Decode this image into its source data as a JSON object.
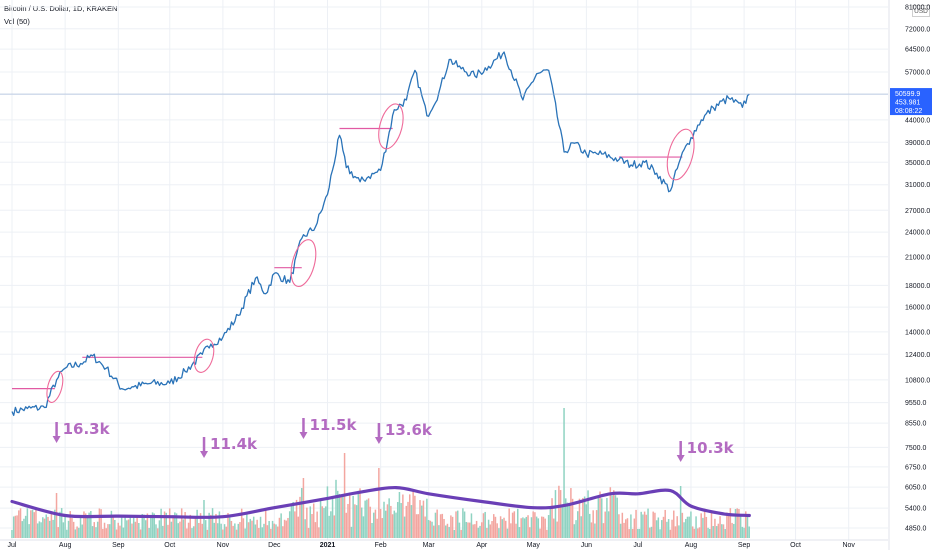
{
  "header": {
    "symbol_line": "Bitcoin / U.S. Dollar, 1D, KRAKEN",
    "volume_line": "Vol (50)",
    "currency": "USD"
  },
  "colors": {
    "price_line": "#2a73b8",
    "level_line": "#e15aa3",
    "circle": "#ef6b9a",
    "volume_up": "#8fd3c2",
    "volume_down": "#f3a6a0",
    "volume_ma": "#6a3fb6",
    "annotation": "#b36bc1",
    "last_price_bg": "#2962ff",
    "grid": "#edf0f5"
  },
  "last_price": {
    "price": "50599.9",
    "volume": "453.981",
    "countdown": "08:08:22"
  },
  "chart_data": [
    {
      "type": "line",
      "y_scale": "log",
      "y_ticks": [
        4850,
        5400,
        6050,
        6750,
        7500,
        8550,
        9550,
        10800,
        12400,
        14000,
        16000,
        18000,
        21000,
        24000,
        27000,
        31000,
        35000,
        39000,
        44000,
        50500,
        57000,
        64500,
        72000,
        81000
      ],
      "y_tick_labels": [
        "4850.0",
        "5400.0",
        "6050.0",
        "6750.0",
        "7500.0",
        "8550.0",
        "9550.0",
        "10800.0",
        "12400.0",
        "14000.0",
        "16000.0",
        "18000.0",
        "21000.0",
        "24000.0",
        "27000.0",
        "31000.0",
        "35000.0",
        "39000.0",
        "44000.0",
        "50500.0",
        "57000.0",
        "64500.0",
        "72000.0",
        "81000.0"
      ],
      "x_tick_labels": [
        "Jul",
        "Aug",
        "Sep",
        "Oct",
        "Nov",
        "Dec",
        "2021",
        "Feb",
        "Mar",
        "Apr",
        "May",
        "Jun",
        "Jul",
        "Aug",
        "Sep",
        "Oct",
        "Nov"
      ],
      "series": [
        {
          "x": [
            "2020-07-01",
            "2020-07-10",
            "2020-07-20",
            "2020-07-27",
            "2020-08-01",
            "2020-08-10",
            "2020-08-17",
            "2020-08-25",
            "2020-09-03",
            "2020-09-10",
            "2020-09-20",
            "2020-10-01",
            "2020-10-10",
            "2020-10-20",
            "2020-10-25",
            "2020-11-01",
            "2020-11-10",
            "2020-11-20",
            "2020-11-26",
            "2020-12-01",
            "2020-12-10",
            "2020-12-17",
            "2020-12-25",
            "2021-01-01",
            "2021-01-08",
            "2021-01-12",
            "2021-01-20",
            "2021-01-25",
            "2021-02-01",
            "2021-02-09",
            "2021-02-16",
            "2021-02-21",
            "2021-02-28",
            "2021-03-07",
            "2021-03-13",
            "2021-03-20",
            "2021-03-28",
            "2021-04-05",
            "2021-04-14",
            "2021-04-25",
            "2021-05-03",
            "2021-05-10",
            "2021-05-19",
            "2021-05-25",
            "2021-06-01",
            "2021-06-10",
            "2021-06-20",
            "2021-06-27",
            "2021-07-05",
            "2021-07-12",
            "2021-07-20",
            "2021-07-26",
            "2021-08-01",
            "2021-08-07",
            "2021-08-14",
            "2021-08-23",
            "2021-08-31",
            "2021-09-04"
          ],
          "values": [
            9100,
            9250,
            9300,
            10800,
            11500,
            11800,
            12300,
            11500,
            10300,
            10400,
            10600,
            10600,
            11300,
            12400,
            13100,
            13600,
            15300,
            18700,
            17200,
            19200,
            18300,
            23200,
            24700,
            29400,
            40500,
            34000,
            31500,
            32400,
            33500,
            46500,
            49000,
            57500,
            45000,
            51000,
            61000,
            58000,
            55800,
            58800,
            63500,
            49000,
            56500,
            57500,
            37000,
            38800,
            36600,
            36600,
            35500,
            34500,
            35000,
            33000,
            30000,
            35800,
            40000,
            44000,
            47000,
            49500,
            47100,
            50600
          ]
        }
      ]
    },
    {
      "type": "bar",
      "name": "Vol (50)",
      "series": [
        {
          "name": "Volume",
          "values": []
        },
        {
          "name": "Volume MA",
          "x": [
            "2020-07-01",
            "2020-08-01",
            "2020-09-01",
            "2020-10-01",
            "2020-11-01",
            "2020-12-01",
            "2021-01-01",
            "2021-01-20",
            "2021-02-10",
            "2021-03-01",
            "2021-04-01",
            "2021-05-01",
            "2021-05-20",
            "2021-06-15",
            "2021-07-01",
            "2021-07-20",
            "2021-08-01",
            "2021-08-20",
            "2021-09-04"
          ],
          "values": [
            5700,
            5250,
            5230,
            5210,
            5210,
            5500,
            5800,
            6000,
            6150,
            5950,
            5700,
            5500,
            5580,
            5950,
            5950,
            6050,
            5550,
            5300,
            5250
          ]
        }
      ],
      "annotations": [
        {
          "label": "16.3k",
          "date": "2020-07-27"
        },
        {
          "label": "11.4k",
          "date": "2020-10-21"
        },
        {
          "label": "11.5k",
          "date": "2020-12-18"
        },
        {
          "label": "13.6k",
          "date": "2021-01-31"
        },
        {
          "label": "10.3k",
          "date": "2021-07-26"
        }
      ]
    }
  ],
  "breakout_levels": [
    {
      "price": 10300,
      "from": "2020-07-01",
      "to": "2020-07-26"
    },
    {
      "price": 12200,
      "from": "2020-08-11",
      "to": "2020-10-20"
    },
    {
      "price": 19800,
      "from": "2020-12-01",
      "to": "2020-12-17"
    },
    {
      "price": 42000,
      "from": "2021-01-08",
      "to": "2021-02-08"
    },
    {
      "price": 36000,
      "from": "2021-06-20",
      "to": "2021-07-27"
    }
  ]
}
